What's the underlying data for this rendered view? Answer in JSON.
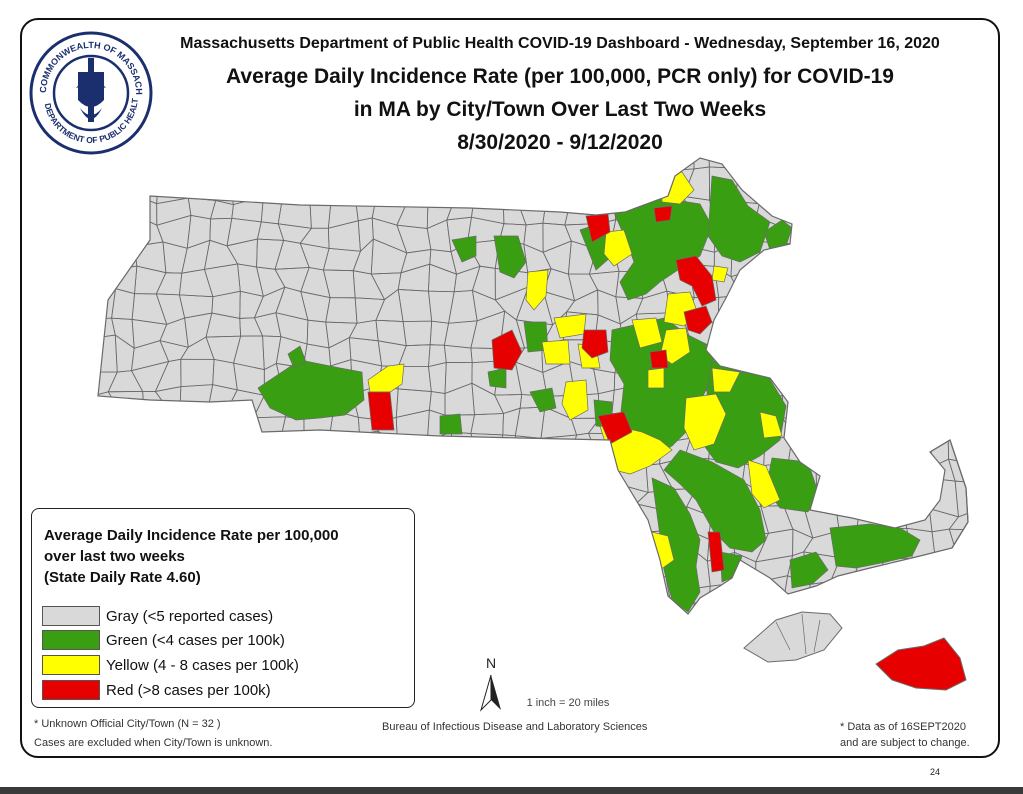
{
  "header": {
    "line1": "Massachusetts Department of Public Health COVID-19 Dashboard - Wednesday, September 16, 2020",
    "line2": "Average Daily Incidence Rate (per 100,000, PCR only) for COVID-19",
    "line3": "in MA by City/Town Over Last Two Weeks",
    "line4": "8/30/2020 - 9/12/2020"
  },
  "seal": {
    "outer_text": "COMMONWEALTH OF MASSACHUSETTS",
    "inner_text": "DEPARTMENT OF PUBLIC HEALTH"
  },
  "colors": {
    "gray": "#d9d9d9",
    "green": "#3a9e12",
    "yellow": "#ffff00",
    "red": "#e60000",
    "border": "#6a6a6a"
  },
  "legend": {
    "title_line1": "Average Daily Incidence Rate per 100,000",
    "title_line2": "over last two weeks",
    "title_line3": "(State Daily Rate 4.60)",
    "items": [
      {
        "label": "Gray (<5 reported cases)",
        "color": "#d9d9d9"
      },
      {
        "label": "Green (<4 cases per 100k)",
        "color": "#3a9e12"
      },
      {
        "label": "Yellow (4 - 8 cases per 100k)",
        "color": "#ffff00"
      },
      {
        "label": "Red (>8 cases per 100k)",
        "color": "#e60000"
      }
    ]
  },
  "north_arrow": {
    "letter": "N"
  },
  "scale_text": "1 inch = 20 miles",
  "footer": {
    "left_line1": "* Unknown Official City/Town (N = 32 )",
    "left_line2": "Cases are excluded when City/Town is unknown.",
    "center": "Bureau of Infectious Disease and Laboratory Sciences",
    "right_line1": "* Data as of 16SEPT2020",
    "right_line2": "and are subject to change.",
    "page_number": "24"
  }
}
